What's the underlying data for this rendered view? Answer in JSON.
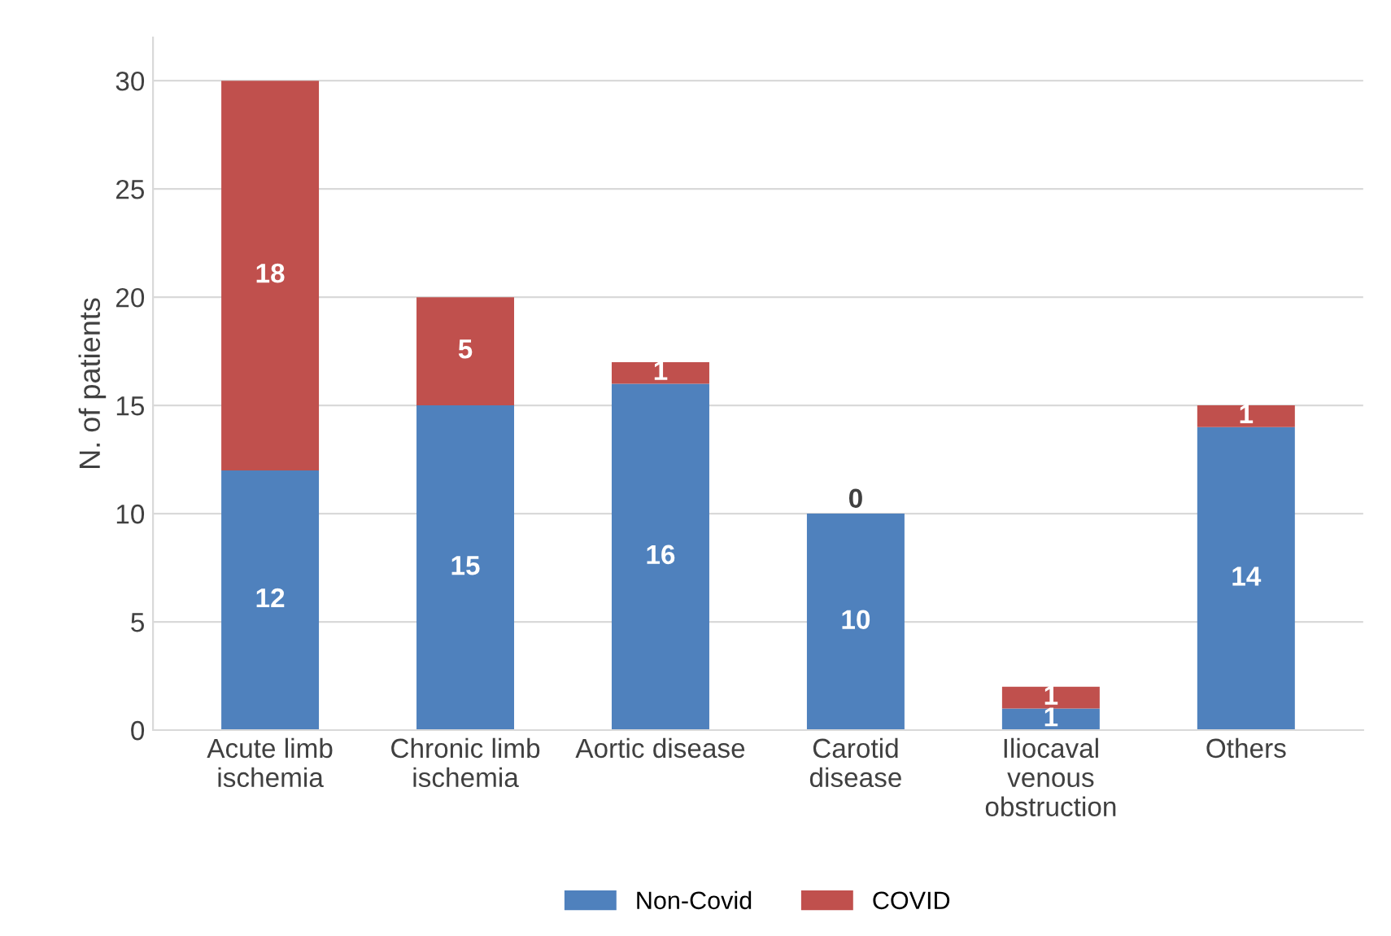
{
  "chart_data": {
    "type": "bar",
    "stacked": true,
    "ylabel": "N. of patients",
    "categories": [
      "Acute limb ischemia",
      "Chronic limb ischemia",
      "Aortic disease",
      "Carotid disease",
      "Iliocaval venous obstruction",
      "Others"
    ],
    "series": [
      {
        "name": "Non-Covid",
        "color": "#4f81bd",
        "values": [
          12,
          15,
          16,
          10,
          1,
          14
        ]
      },
      {
        "name": "COVID",
        "color": "#c0504d",
        "values": [
          18,
          5,
          1,
          0,
          1,
          1
        ]
      }
    ],
    "ylim": [
      0,
      32
    ],
    "yticks": [
      0,
      5,
      10,
      15,
      20,
      25,
      30
    ],
    "grid": "y",
    "legend": "bottom",
    "data_labels": true
  }
}
